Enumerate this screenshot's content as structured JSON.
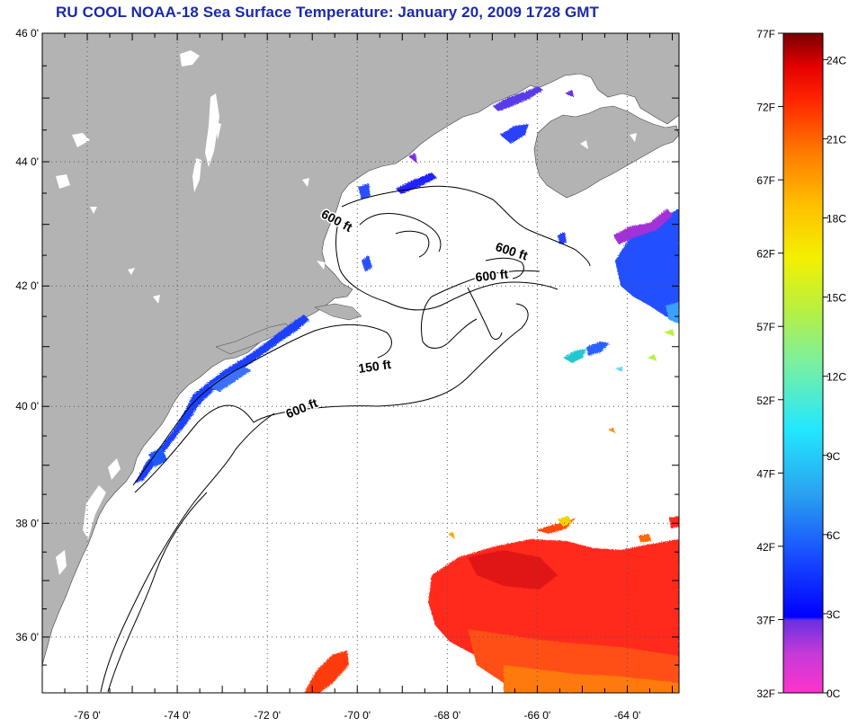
{
  "title": "RU COOL  NOAA-18  Sea Surface Temperature:  January 20, 2009 1728 GMT",
  "map": {
    "lat_labels": [
      {
        "lat": 46,
        "text": "46 0'"
      },
      {
        "lat": 44,
        "text": "44 0'"
      },
      {
        "lat": 42,
        "text": "42 0'"
      },
      {
        "lat": 40,
        "text": "40 0'"
      },
      {
        "lat": 38,
        "text": "38 0'"
      },
      {
        "lat": 36,
        "text": "36 0'"
      }
    ],
    "lon_labels": [
      {
        "lon": -76,
        "text": "-76 0'"
      },
      {
        "lon": -74,
        "text": "-74 0'"
      },
      {
        "lon": -72,
        "text": "-72 0'"
      },
      {
        "lon": -70,
        "text": "-70 0'"
      },
      {
        "lon": -68,
        "text": "-68 0'"
      },
      {
        "lon": -66,
        "text": "-66 0'"
      },
      {
        "lon": -64,
        "text": "-64 0'"
      }
    ],
    "contour_labels": [
      {
        "text": "600 ft",
        "lon": -70.5,
        "lat": 43.0
      },
      {
        "text": "600 ft",
        "lon": -66.6,
        "lat": 42.5
      },
      {
        "text": "600 ft",
        "lon": -67.0,
        "lat": 42.1
      },
      {
        "text": "150 ft",
        "lon": -69.6,
        "lat": 40.6
      },
      {
        "text": "600 ft",
        "lon": -71.2,
        "lat": 39.9
      }
    ],
    "colors": {
      "land": "#b3b3b3",
      "ocean": "#ffffff",
      "grid": "#555555",
      "contour": "#000000",
      "cold_sst": "#1c40ff",
      "warm_sst": "#ff2a1a"
    }
  },
  "colorbar": {
    "labels_f": [
      "77F",
      "72F",
      "67F",
      "62F",
      "57F",
      "52F",
      "47F",
      "42F",
      "37F",
      "32F"
    ],
    "labels_c": [
      "24C",
      "21C",
      "18C",
      "15C",
      "12C",
      "9C",
      "6C",
      "3C",
      "0C"
    ],
    "range_f": [
      32,
      77
    ]
  }
}
